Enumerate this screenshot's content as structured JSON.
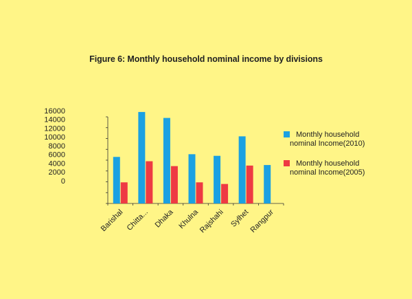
{
  "chart_data": {
    "type": "bar",
    "title": "Figure 6: Monthly household nominal income by divisions",
    "xlabel": "",
    "ylabel": "",
    "ylim": [
      0,
      16000
    ],
    "yticks": [
      "16000",
      "14000",
      "12000",
      "10000",
      "8000",
      "6000",
      "4000",
      "2000",
      "0"
    ],
    "categories": [
      "Barishal",
      "Chitta...",
      "Dhaka",
      "Khulna",
      "Rajshahi",
      "Sylhet",
      "Rangpur"
    ],
    "series": [
      {
        "name": "Monthly household nominal Income(2010)",
        "legend_lines": [
          "Monthly household",
          "nominal Income(2010)"
        ],
        "color": "#1BA1E2",
        "values": [
          8600,
          16900,
          15800,
          9100,
          8800,
          12400,
          7100
        ]
      },
      {
        "name": "Monthly household nominal Income(2005)",
        "legend_lines": [
          "Monthly household",
          "nominal Income(2005)"
        ],
        "color": "#EE3A43",
        "values": [
          3900,
          7800,
          6900,
          3900,
          3600,
          7000,
          null
        ]
      }
    ],
    "grid": false,
    "legend_position": "right"
  }
}
